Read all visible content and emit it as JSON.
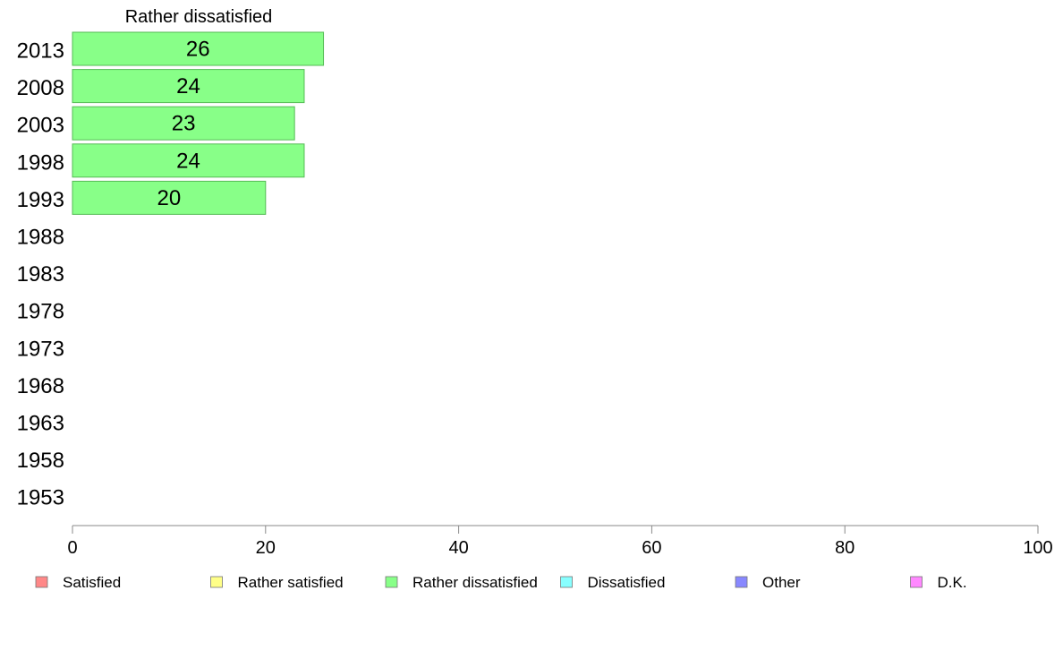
{
  "chart_data": {
    "type": "bar",
    "orientation": "horizontal",
    "title": "Rather dissatisfied",
    "categories": [
      "2013",
      "2008",
      "2003",
      "1998",
      "1993",
      "1988",
      "1983",
      "1978",
      "1973",
      "1968",
      "1963",
      "1958",
      "1953"
    ],
    "series": [
      {
        "name": "Rather dissatisfied",
        "values": [
          26,
          24,
          23,
          24,
          20,
          null,
          null,
          null,
          null,
          null,
          null,
          null,
          null
        ]
      }
    ],
    "xlim": [
      0,
      100
    ],
    "xticks": [
      0,
      20,
      40,
      60,
      80,
      100
    ],
    "grid": false,
    "legend": {
      "placement": "bottom",
      "items": [
        {
          "label": "Satisfied",
          "color": "#ff8888"
        },
        {
          "label": "Rather satisfied",
          "color": "#ffff88"
        },
        {
          "label": "Rather dissatisfied",
          "color": "#88ff88"
        },
        {
          "label": "Dissatisfied",
          "color": "#88ffff"
        },
        {
          "label": "Other",
          "color": "#8888ff"
        },
        {
          "label": "D.K.",
          "color": "#ff88ff"
        }
      ]
    },
    "bar_color": "#88ff88",
    "bar_stroke": "#55bb55"
  }
}
